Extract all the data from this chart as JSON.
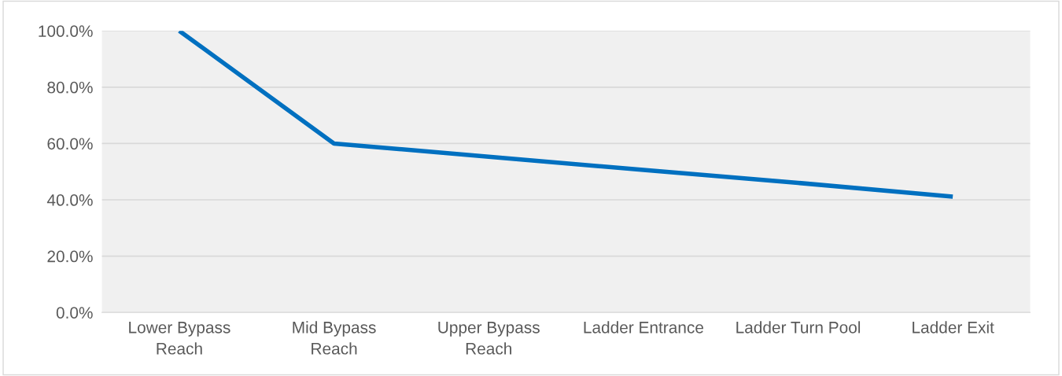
{
  "chart_data": {
    "type": "line",
    "categories": [
      "Lower Bypass\nReach",
      "Mid Bypass\nReach",
      "Upper Bypass\nReach",
      "Ladder Entrance",
      "Ladder Turn Pool",
      "Ladder Exit"
    ],
    "series": [
      {
        "color": "#0070c0",
        "values": [
          100,
          60,
          55.3,
          50.6,
          46.0,
          41.1
        ]
      }
    ],
    "ylim": [
      0,
      100
    ],
    "yticks": [
      {
        "value": 0,
        "label": "0.0%"
      },
      {
        "value": 20,
        "label": "20.0%"
      },
      {
        "value": 40,
        "label": "40.0%"
      },
      {
        "value": 60,
        "label": "60.0%"
      },
      {
        "value": 80,
        "label": "80.0%"
      },
      {
        "value": 100,
        "label": "100.0%"
      }
    ],
    "grid": "y",
    "marker": "none",
    "line_style": "solid"
  }
}
